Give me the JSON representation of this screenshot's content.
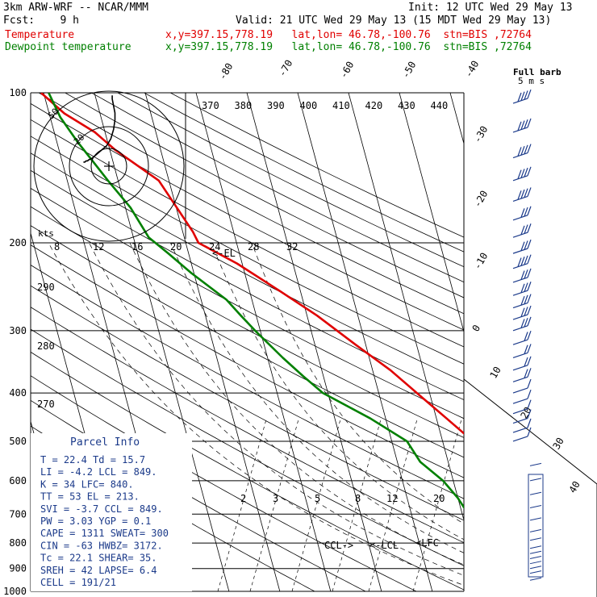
{
  "header": {
    "model": "3km ARW-WRF -- NCAR/MMM",
    "init": "Init: 12 UTC Wed 29 May 13",
    "fcst": "Fcst:    9 h",
    "valid": "Valid: 21 UTC Wed 29 May 13 (15 MDT Wed 29 May 13)",
    "temp_label": "Temperature",
    "temp_info": "x,y=397.15,778.19   lat,lon= 46.78,-100.76  stn=BIS ,72764",
    "dew_label": "Dewpoint temperature",
    "dew_info": "x,y=397.15,778.19   lat,lon= 46.78,-100.76  stn=BIS ,72764"
  },
  "colors": {
    "temperature": "#e00000",
    "dewpoint": "#008000",
    "info": "#1b3a8a",
    "barb": "#1b3a8a"
  },
  "chart_data": {
    "type": "line",
    "title": "Skew-T log-P sounding",
    "ylabel": "Pressure (hPa)",
    "pressure_levels": [
      100,
      200,
      300,
      400,
      500,
      600,
      700,
      800,
      900,
      1000
    ],
    "pressure_tick_labels": [
      "100",
      "200",
      "300",
      "400",
      "500",
      "600",
      "700",
      "800",
      "900",
      "1000"
    ],
    "isotherm_labels": [
      "-80",
      "-70",
      "-60",
      "-50",
      "-40",
      "-30",
      "-20",
      "-10",
      "0",
      "10",
      "20",
      "30",
      "40"
    ],
    "theta_labels": [
      "370",
      "380",
      "390",
      "400",
      "410",
      "420",
      "430",
      "440"
    ],
    "theta_left_labels": [
      "290",
      "280",
      "270"
    ],
    "mixing_ratio_labels": [
      "2",
      "3",
      "5",
      "8",
      "12",
      "20"
    ],
    "hodograph": {
      "units_label": "kts",
      "ring_labels": [
        "20",
        "50"
      ],
      "speed_labels": [
        "8",
        "12",
        "16",
        "20",
        "24",
        "28",
        "32"
      ],
      "u": [
        -8,
        -7,
        -6,
        -5,
        -4,
        -2,
        0,
        3,
        6,
        9,
        12,
        14,
        15,
        15,
        14,
        13,
        13
      ],
      "v": [
        -2,
        -2,
        -1,
        -1,
        0,
        1,
        3,
        6,
        9,
        12,
        18,
        26,
        34,
        40,
        46,
        52,
        55
      ]
    },
    "series": [
      {
        "name": "Temperature",
        "points": [
          [
            30.0,
            930
          ],
          [
            29.0,
            905
          ],
          [
            27.5,
            880
          ],
          [
            26.5,
            860
          ],
          [
            23.5,
            800
          ],
          [
            20.0,
            740
          ],
          [
            17.0,
            700
          ],
          [
            14.8,
            650
          ],
          [
            12.5,
            600
          ],
          [
            9.5,
            550
          ],
          [
            6.0,
            500
          ],
          [
            2.0,
            450
          ],
          [
            -2.5,
            400
          ],
          [
            -6.5,
            360
          ],
          [
            -12.0,
            320
          ],
          [
            -18.0,
            280
          ],
          [
            -24.0,
            250
          ],
          [
            -31.0,
            220
          ],
          [
            -37.5,
            200
          ],
          [
            -38.0,
            190
          ],
          [
            -42.0,
            150
          ],
          [
            -49.0,
            130
          ],
          [
            -52.0,
            120
          ],
          [
            -57.0,
            110
          ],
          [
            -60.5,
            100
          ]
        ]
      },
      {
        "name": "Dewpoint temperature",
        "points": [
          [
            16.0,
            955
          ],
          [
            16.3,
            925
          ],
          [
            15.7,
            895
          ],
          [
            12.0,
            860
          ],
          [
            8.0,
            820
          ],
          [
            4.0,
            760
          ],
          [
            4.0,
            740
          ],
          [
            1.2,
            700
          ],
          [
            0.0,
            650
          ],
          [
            -2.0,
            600
          ],
          [
            -5.5,
            550
          ],
          [
            -7.0,
            500
          ],
          [
            -13.0,
            450
          ],
          [
            -21.0,
            400
          ],
          [
            -24.0,
            370
          ],
          [
            -27.0,
            340
          ],
          [
            -31.0,
            300
          ],
          [
            -33.0,
            280
          ],
          [
            -35.0,
            260
          ],
          [
            -40.5,
            230
          ],
          [
            -44.0,
            210
          ],
          [
            -47.0,
            195
          ],
          [
            -49.0,
            170
          ],
          [
            -52.0,
            150
          ],
          [
            -56.0,
            125
          ],
          [
            -58.0,
            112
          ],
          [
            -59.0,
            100
          ]
        ]
      }
    ],
    "annotations": {
      "el": "EL",
      "lcl": "LCL",
      "lfc": "LFC",
      "ccl": "CCL",
      "barb_title": "Full barb",
      "barb_units": "5 m s"
    },
    "parcel_info": {
      "title": "Parcel Info",
      "rows": [
        "T  =    22.4  Td =  15.7",
        "LI =    -4.2  LCL =  849.",
        "K  =     34  LFC=  840.",
        "TT =     53  EL =  213.",
        "SVI =   -3.7  CCL =  849.",
        "PW =   3.03  YGP =   0.1",
        "CAPE =  1311  SWEAT=  300",
        "CIN =    -63  HWBZ= 3172.",
        "Tc =    22.1  SHEAR=  35.",
        "SREH =    42  LAPSE=  6.4",
        "CELL = 191/21"
      ]
    },
    "wind_barbs": {
      "pressures": [
        105,
        120,
        135,
        150,
        165,
        180,
        195,
        210,
        225,
        240,
        255,
        270,
        285,
        300,
        320,
        340,
        360,
        380,
        400,
        420,
        440,
        460,
        480,
        500
      ],
      "speed_ms": [
        35,
        35,
        35,
        35,
        35,
        32,
        30,
        32,
        35,
        32,
        30,
        28,
        25,
        25,
        22,
        20,
        18,
        15,
        12,
        10,
        10,
        8,
        8,
        5
      ],
      "dir_deg": [
        260,
        260,
        260,
        265,
        265,
        265,
        270,
        270,
        270,
        270,
        265,
        265,
        265,
        265,
        260,
        260,
        255,
        255,
        250,
        250,
        245,
        240,
        235,
        230
      ],
      "low_speed_ms": [
        10,
        12,
        15,
        15,
        15,
        15,
        15,
        15,
        15,
        12,
        10,
        10,
        10,
        8
      ],
      "low_pressures": [
        560,
        600,
        640,
        680,
        720,
        760,
        790,
        820,
        840,
        860,
        880,
        900,
        920,
        950
      ]
    }
  }
}
